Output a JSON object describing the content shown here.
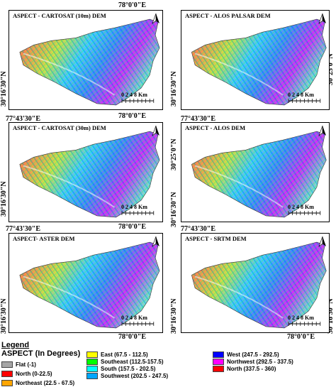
{
  "coords": {
    "top_e": "78°0'0\"E",
    "left_e": "77°43'30\"E",
    "mid_e": "78°0'0\"E",
    "lat_upper": "30°25'0\"N",
    "lat_lower": "30°16'30\"N"
  },
  "panels": [
    {
      "title": "ASPECT - CARTOSAT (10m) DEM"
    },
    {
      "title": "ASPECT - ALOS PALSAR DEM"
    },
    {
      "title": "ASPECT - CARTOSAT (30m) DEM"
    },
    {
      "title": "ASPECT - ALOS DEM"
    },
    {
      "title": "ASPECT- ASTER DEM"
    },
    {
      "title": "ASPECT - SRTM DEM"
    }
  ],
  "scale": {
    "labels": "0  2  4    8 Km"
  },
  "north_symbol": "N",
  "legend": {
    "title": "Legend",
    "subtitle": "ASPECT (In Degrees)",
    "items": [
      {
        "label": "Flat (-1)",
        "color": "#a5a5a5"
      },
      {
        "label": "North (0-22.5)",
        "color": "#ff0000"
      },
      {
        "label": "Northeast (22.5 - 67.5)",
        "color": "#ffa500"
      },
      {
        "label": "East (67.5 - 112.5)",
        "color": "#ffff00"
      },
      {
        "label": "Southeast (112.5-157.5)",
        "color": "#00ff00"
      },
      {
        "label": "South (157.5 - 202.5)",
        "color": "#00ffff"
      },
      {
        "label": "Southwest (202.5 - 247.5)",
        "color": "#00a6ff"
      },
      {
        "label": "West (247.5 - 292.5)",
        "color": "#0000ff"
      },
      {
        "label": "Northwest (292.5 - 337.5)",
        "color": "#ff00ff"
      },
      {
        "label": "North (337.5 - 360)",
        "color": "#ff0000"
      }
    ]
  }
}
